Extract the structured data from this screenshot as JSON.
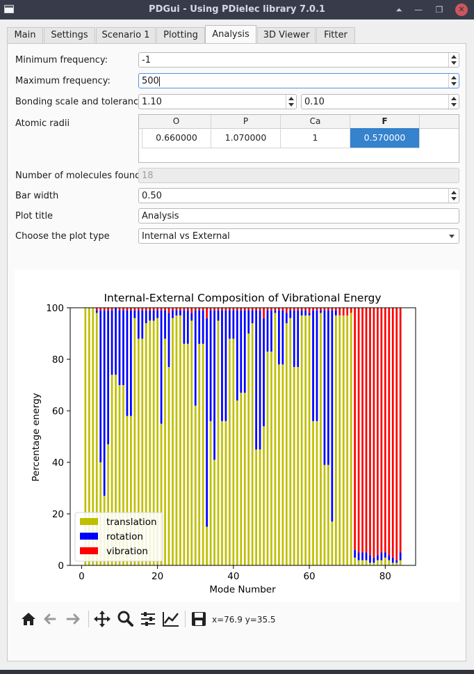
{
  "window": {
    "title": "PDGui - Using PDielec library 7.0.1"
  },
  "tabs": [
    {
      "label": "Main"
    },
    {
      "label": "Settings"
    },
    {
      "label": "Scenario 1"
    },
    {
      "label": "Plotting"
    },
    {
      "label": "Analysis"
    },
    {
      "label": "3D Viewer"
    },
    {
      "label": "Fitter"
    }
  ],
  "active_tab": "Analysis",
  "form": {
    "min_freq_label": "Minimum frequency:",
    "min_freq_value": "-1",
    "max_freq_label": "Maximum frequency:",
    "max_freq_value": "500",
    "bonding_label": "Bonding scale and tolerance",
    "bonding_scale": "1.10",
    "bonding_tolerance": "0.10",
    "radii_label": "Atomic radii",
    "radii_headers": [
      "O",
      "P",
      "Ca",
      "F"
    ],
    "radii_values": [
      "0.660000",
      "1.070000",
      "1",
      "0.570000"
    ],
    "molecules_label": "Number of molecules found",
    "molecules_value": "18",
    "bar_width_label": "Bar width",
    "bar_width_value": "0.50",
    "plot_title_label": "Plot title",
    "plot_title_value": "Analysis",
    "plot_type_label": "Choose the plot type",
    "plot_type_value": "Internal vs External"
  },
  "chart_data": {
    "type": "bar",
    "stacked": true,
    "title": "Internal-External Composition of Vibrational Energy",
    "xlabel": "Mode Number",
    "ylabel": "Percentage energy",
    "xlim": [
      -3,
      88
    ],
    "ylim": [
      0,
      100
    ],
    "xticks": [
      0,
      20,
      40,
      60,
      80
    ],
    "yticks": [
      0,
      20,
      40,
      60,
      80,
      100
    ],
    "legend_position": "lower-left",
    "series": [
      {
        "name": "translation",
        "color": "#bfbf00"
      },
      {
        "name": "rotation",
        "color": "#0000ff"
      },
      {
        "name": "vibration",
        "color": "#ff0000"
      }
    ],
    "x": [
      1,
      2,
      3,
      4,
      5,
      6,
      7,
      8,
      9,
      10,
      11,
      12,
      13,
      14,
      15,
      16,
      17,
      18,
      19,
      20,
      21,
      22,
      23,
      24,
      25,
      26,
      27,
      28,
      29,
      30,
      31,
      32,
      33,
      34,
      35,
      36,
      37,
      38,
      39,
      40,
      41,
      42,
      43,
      44,
      45,
      46,
      47,
      48,
      49,
      50,
      51,
      52,
      53,
      54,
      55,
      56,
      57,
      58,
      59,
      60,
      61,
      62,
      63,
      64,
      65,
      66,
      67,
      68,
      69,
      70,
      71,
      72,
      73,
      74,
      75,
      76,
      77,
      78,
      79,
      80,
      81,
      82,
      83,
      84
    ],
    "translation": [
      100,
      100,
      100,
      98,
      40,
      27,
      47,
      74,
      74,
      70,
      70,
      58,
      58,
      96,
      88,
      88,
      94,
      95,
      95,
      96,
      55,
      88,
      77,
      96,
      97,
      97,
      86,
      86,
      95,
      62,
      86,
      86,
      15,
      56,
      41,
      95,
      56,
      56,
      88,
      88,
      64,
      67,
      67,
      90,
      94,
      45,
      45,
      54,
      83,
      83,
      98,
      78,
      78,
      94,
      96,
      77,
      77,
      97,
      97,
      97,
      56,
      56,
      98,
      39,
      39,
      17,
      97,
      97,
      97,
      97,
      98,
      3,
      2,
      2,
      2,
      1,
      1,
      2,
      2,
      3,
      2,
      1,
      1,
      2
    ],
    "vibration": [
      0,
      0,
      0,
      1,
      1,
      1,
      1,
      1,
      0,
      1,
      1,
      1,
      1,
      1,
      1,
      1,
      1,
      1,
      1,
      1,
      1,
      1,
      2,
      1,
      1,
      1,
      1,
      1,
      2,
      1,
      1,
      1,
      4,
      1,
      1,
      1,
      1,
      1,
      1,
      1,
      1,
      1,
      1,
      1,
      1,
      1,
      1,
      4,
      1,
      1,
      1,
      1,
      1,
      2,
      1,
      1,
      1,
      1,
      1,
      2,
      1,
      1,
      1,
      1,
      1,
      1,
      1,
      3,
      3,
      3,
      2,
      94,
      95,
      95,
      95,
      96,
      97,
      96,
      95,
      95,
      96,
      97,
      98,
      95
    ]
  },
  "toolbar": {
    "icons": [
      "home-icon",
      "back-arrow-icon",
      "forward-arrow-icon",
      "pan-icon",
      "zoom-icon",
      "configure-subplots-icon",
      "edit-axis-icon",
      "save-icon"
    ],
    "coords": "x=76.9 y=35.5"
  }
}
